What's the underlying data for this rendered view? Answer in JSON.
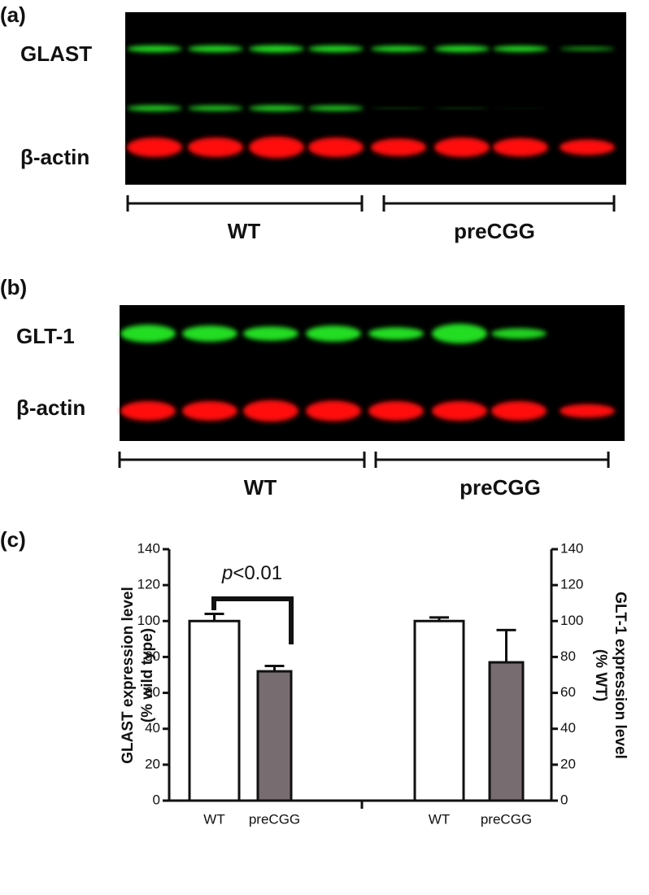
{
  "blots": [
    {
      "panel_label": "(a)",
      "bands": [
        "GLAST",
        "β-actin"
      ],
      "groups": [
        "WT",
        "preCGG"
      ]
    },
    {
      "panel_label": "(b)",
      "bands": [
        "GLT-1",
        "β-actin"
      ],
      "groups": [
        "WT",
        "preCGG"
      ]
    }
  ],
  "chart_data": {
    "type": "bar",
    "panel_label": "(c)",
    "ylabel": [
      "GLAST expression level",
      "(% wild type)"
    ],
    "y2label": [
      "GLT-1 expression level",
      "(% WT)"
    ],
    "annotation": {
      "italic": "p",
      "text": "<0.01"
    },
    "categories": [
      "WT",
      "preCGG",
      "WT",
      "preCGG"
    ],
    "colors": [
      "#ffffff",
      "#776c70",
      "#ffffff",
      "#776c70"
    ],
    "series": [
      {
        "values": [
          100,
          72,
          null,
          null
        ],
        "errors": [
          4,
          3,
          null,
          null
        ]
      },
      {
        "axis": "y2",
        "values": [
          null,
          null,
          100,
          77
        ],
        "errors": [
          null,
          null,
          2,
          18
        ]
      }
    ],
    "ylim": [
      0,
      140
    ],
    "yticks": [
      0,
      20,
      40,
      60,
      80,
      100,
      120,
      140
    ],
    "y2lim": [
      0,
      140
    ],
    "y2ticks": [
      0,
      20,
      40,
      60,
      80,
      100,
      120,
      140
    ]
  }
}
